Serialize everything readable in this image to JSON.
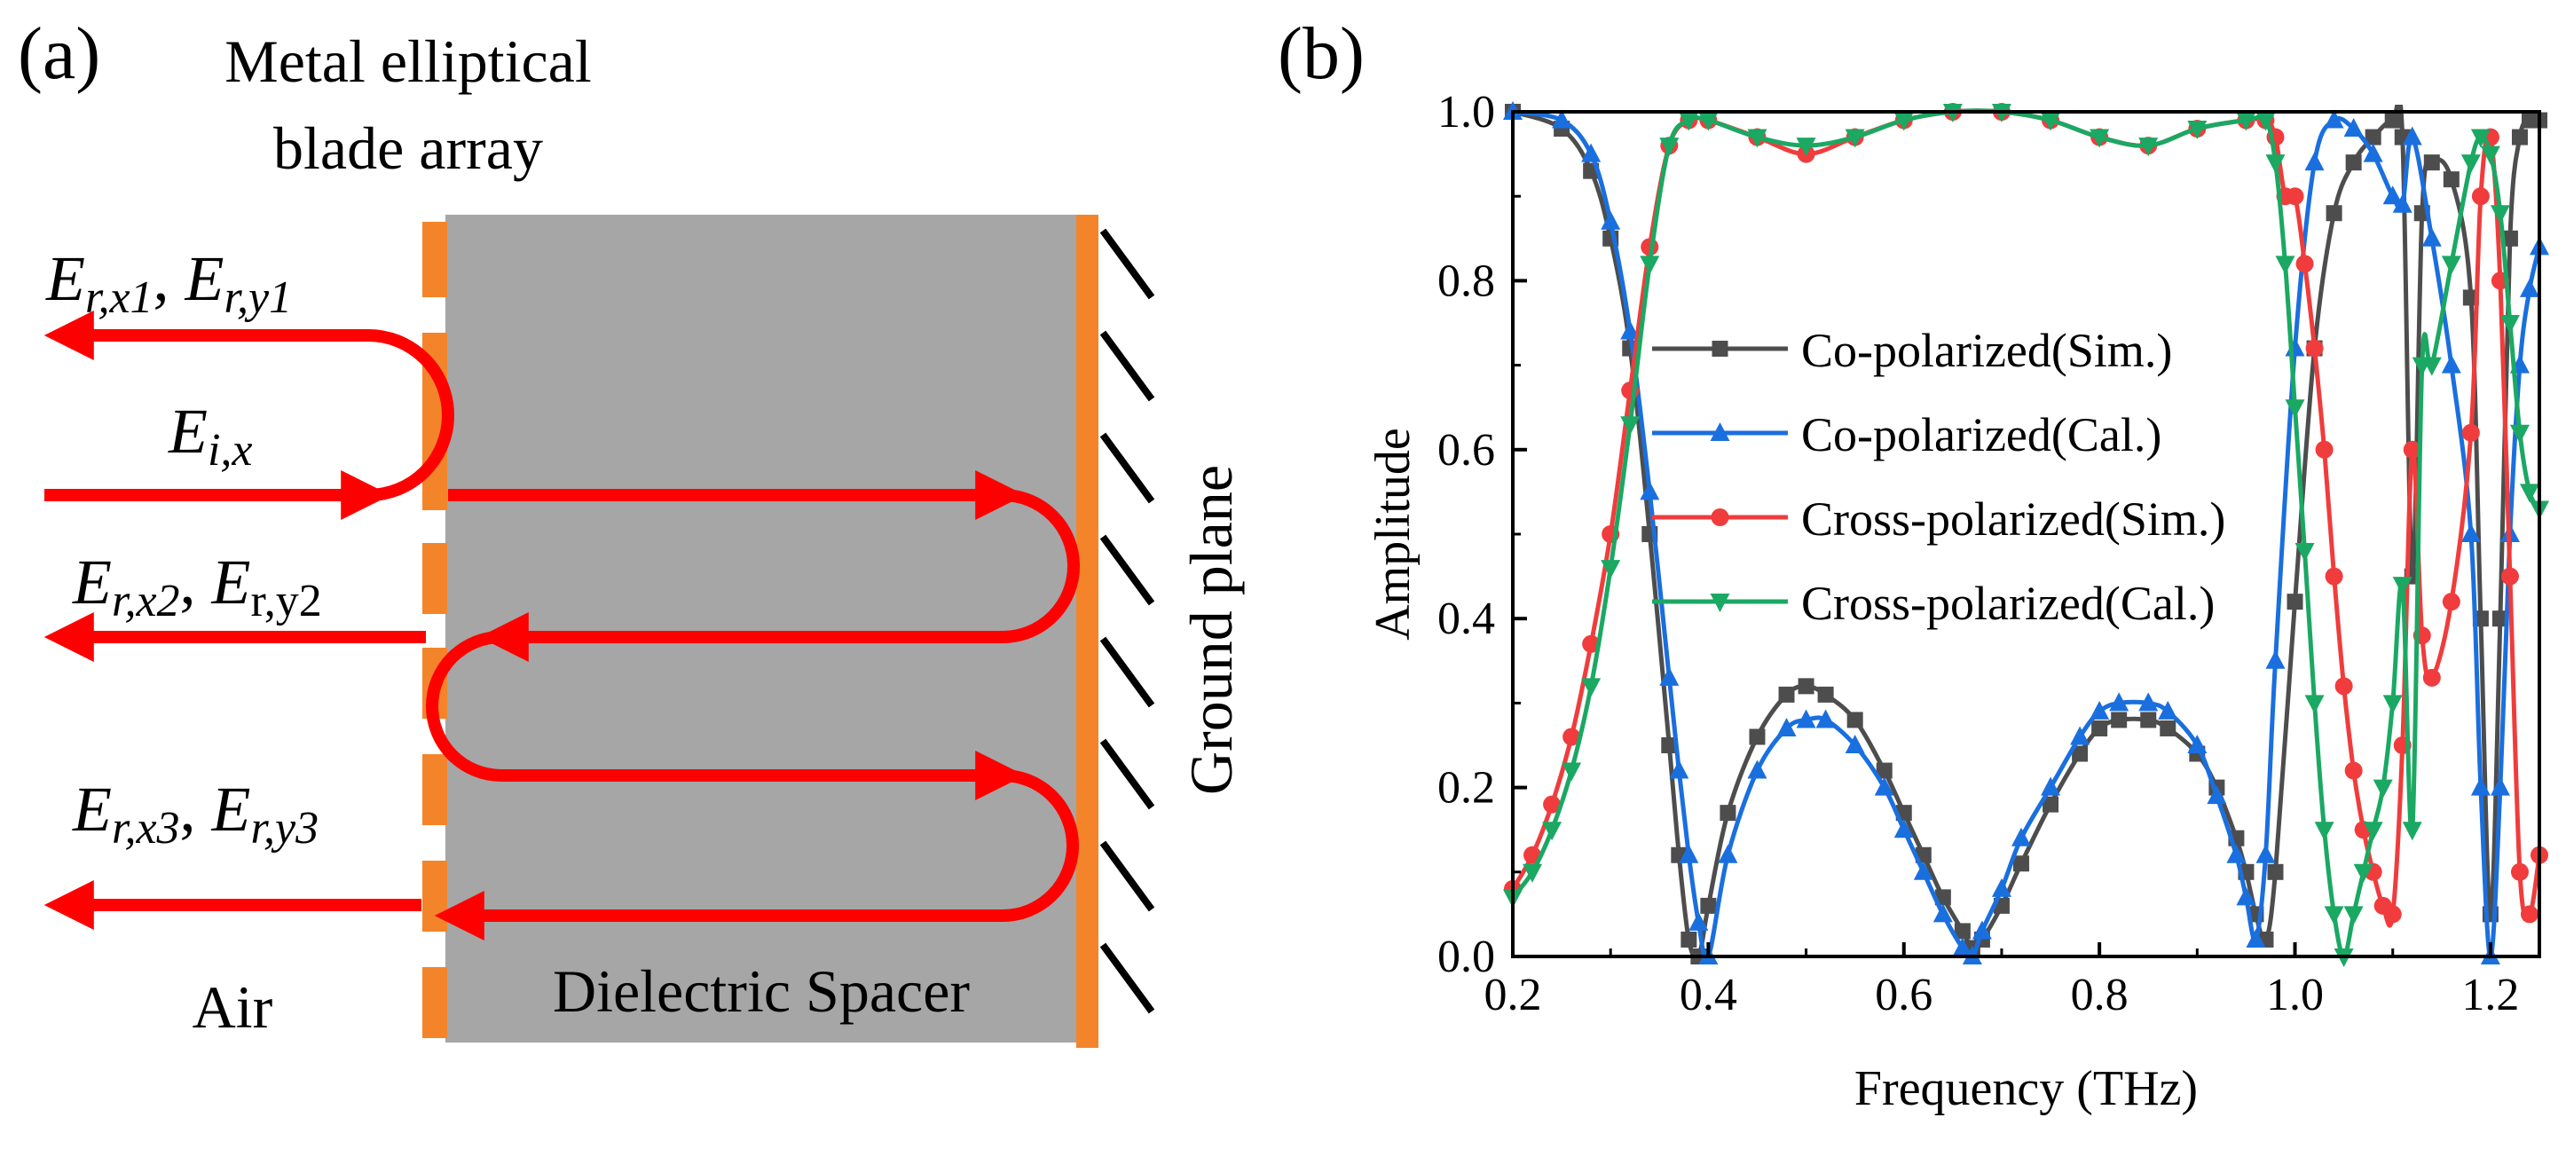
{
  "panel_a": {
    "label": "(a)",
    "title_line1": "Metal elliptical",
    "title_line2": "blade array",
    "spacer_label": "Dielectric Spacer",
    "air_label": "Air",
    "ground_label": "Ground plane",
    "field_incident": {
      "base": "E",
      "sub": "i,x"
    },
    "field_r1": {
      "b1": "E",
      "s1": "r,x1",
      "sep": ", ",
      "b2": "E",
      "s2": "r,y1"
    },
    "field_r2": {
      "b1": "E",
      "s1": "r,x2",
      "sep": ", ",
      "b2": "E",
      "s2": "r,y2"
    },
    "field_r3": {
      "b1": "E",
      "s1": "r,x3",
      "sep": ", ",
      "b2": "E",
      "s2": "r,y3"
    },
    "colors": {
      "arrow": "#ff0000",
      "blade": "#f4842a",
      "spacer": "#a6a6a6"
    }
  },
  "panel_b": {
    "label": "(b)"
  },
  "chart_data": {
    "type": "line",
    "xlabel": "Frequency (THz)",
    "ylabel": "Amplitude",
    "xlim": [
      0.2,
      1.25
    ],
    "ylim": [
      0.0,
      1.0
    ],
    "xticks": [
      "0.2",
      "0.4",
      "0.6",
      "0.8",
      "1.0",
      "1.2"
    ],
    "yticks": [
      "0.0",
      "0.2",
      "0.4",
      "0.6",
      "0.8",
      "1.0"
    ],
    "xtick_values": [
      0.2,
      0.4,
      0.6,
      0.8,
      1.0,
      1.2
    ],
    "ytick_values": [
      0.0,
      0.2,
      0.4,
      0.6,
      0.8,
      1.0
    ],
    "legend_position": "center",
    "series": [
      {
        "name": "Co-polarized(Sim.)",
        "color": "#4d4d4d",
        "marker": "square",
        "x": [
          0.2,
          0.25,
          0.28,
          0.3,
          0.32,
          0.34,
          0.36,
          0.37,
          0.38,
          0.39,
          0.4,
          0.42,
          0.45,
          0.48,
          0.5,
          0.52,
          0.55,
          0.58,
          0.6,
          0.62,
          0.64,
          0.66,
          0.67,
          0.68,
          0.7,
          0.72,
          0.75,
          0.78,
          0.8,
          0.82,
          0.85,
          0.87,
          0.9,
          0.92,
          0.94,
          0.95,
          0.96,
          0.97,
          0.98,
          1.0,
          1.02,
          1.04,
          1.06,
          1.08,
          1.1,
          1.11,
          1.12,
          1.13,
          1.14,
          1.16,
          1.18,
          1.19,
          1.2,
          1.21,
          1.22,
          1.23,
          1.24,
          1.25
        ],
        "y": [
          1.0,
          0.98,
          0.93,
          0.85,
          0.72,
          0.5,
          0.25,
          0.12,
          0.02,
          0.0,
          0.06,
          0.17,
          0.26,
          0.31,
          0.32,
          0.31,
          0.28,
          0.22,
          0.17,
          0.12,
          0.07,
          0.03,
          0.01,
          0.02,
          0.06,
          0.11,
          0.18,
          0.24,
          0.27,
          0.28,
          0.28,
          0.27,
          0.24,
          0.2,
          0.14,
          0.1,
          0.05,
          0.02,
          0.1,
          0.42,
          0.72,
          0.88,
          0.94,
          0.97,
          0.99,
          0.97,
          0.45,
          0.88,
          0.94,
          0.92,
          0.78,
          0.4,
          0.05,
          0.4,
          0.85,
          0.97,
          0.99,
          0.99
        ]
      },
      {
        "name": "Co-polarized(Cal.)",
        "color": "#1a6fdf",
        "marker": "triangle-up",
        "x": [
          0.2,
          0.25,
          0.28,
          0.3,
          0.32,
          0.34,
          0.36,
          0.37,
          0.38,
          0.39,
          0.4,
          0.42,
          0.45,
          0.48,
          0.5,
          0.52,
          0.55,
          0.58,
          0.6,
          0.62,
          0.64,
          0.66,
          0.67,
          0.68,
          0.7,
          0.72,
          0.75,
          0.78,
          0.8,
          0.82,
          0.85,
          0.87,
          0.9,
          0.92,
          0.94,
          0.95,
          0.96,
          0.97,
          0.98,
          1.0,
          1.02,
          1.04,
          1.06,
          1.08,
          1.1,
          1.11,
          1.12,
          1.14,
          1.16,
          1.18,
          1.19,
          1.2,
          1.21,
          1.22,
          1.23,
          1.24,
          1.25
        ],
        "y": [
          1.0,
          0.99,
          0.95,
          0.87,
          0.74,
          0.55,
          0.33,
          0.22,
          0.12,
          0.04,
          0.0,
          0.12,
          0.22,
          0.27,
          0.28,
          0.28,
          0.25,
          0.2,
          0.15,
          0.1,
          0.05,
          0.01,
          0.0,
          0.03,
          0.08,
          0.14,
          0.2,
          0.26,
          0.29,
          0.3,
          0.3,
          0.29,
          0.25,
          0.19,
          0.12,
          0.07,
          0.02,
          0.12,
          0.35,
          0.72,
          0.94,
          0.99,
          0.98,
          0.95,
          0.9,
          0.89,
          0.97,
          0.85,
          0.7,
          0.5,
          0.2,
          0.0,
          0.2,
          0.5,
          0.7,
          0.79,
          0.84
        ]
      },
      {
        "name": "Cross-polarized(Sim.)",
        "color": "#f03c3c",
        "marker": "circle",
        "x": [
          0.2,
          0.22,
          0.24,
          0.26,
          0.28,
          0.3,
          0.32,
          0.34,
          0.36,
          0.38,
          0.4,
          0.45,
          0.5,
          0.55,
          0.6,
          0.65,
          0.7,
          0.75,
          0.8,
          0.85,
          0.9,
          0.95,
          0.97,
          0.98,
          0.99,
          1.0,
          1.01,
          1.02,
          1.03,
          1.04,
          1.05,
          1.06,
          1.07,
          1.08,
          1.09,
          1.1,
          1.11,
          1.12,
          1.13,
          1.14,
          1.16,
          1.18,
          1.19,
          1.2,
          1.21,
          1.22,
          1.23,
          1.24,
          1.25
        ],
        "y": [
          0.08,
          0.12,
          0.18,
          0.26,
          0.37,
          0.5,
          0.67,
          0.84,
          0.96,
          0.99,
          0.99,
          0.97,
          0.95,
          0.97,
          0.99,
          1.0,
          1.0,
          0.99,
          0.97,
          0.96,
          0.98,
          0.99,
          0.99,
          0.97,
          0.9,
          0.9,
          0.82,
          0.72,
          0.6,
          0.45,
          0.32,
          0.22,
          0.15,
          0.1,
          0.06,
          0.05,
          0.25,
          0.6,
          0.38,
          0.33,
          0.42,
          0.62,
          0.9,
          0.97,
          0.8,
          0.45,
          0.1,
          0.05,
          0.12
        ]
      },
      {
        "name": "Cross-polarized(Cal.)",
        "color": "#1aa863",
        "marker": "triangle-down",
        "x": [
          0.2,
          0.22,
          0.24,
          0.26,
          0.28,
          0.3,
          0.32,
          0.34,
          0.36,
          0.38,
          0.4,
          0.45,
          0.5,
          0.55,
          0.6,
          0.65,
          0.7,
          0.75,
          0.8,
          0.85,
          0.9,
          0.95,
          0.97,
          0.98,
          0.99,
          1.0,
          1.01,
          1.02,
          1.03,
          1.04,
          1.05,
          1.06,
          1.07,
          1.08,
          1.09,
          1.1,
          1.11,
          1.12,
          1.13,
          1.14,
          1.16,
          1.18,
          1.19,
          1.2,
          1.21,
          1.22,
          1.23,
          1.24,
          1.25
        ],
        "y": [
          0.07,
          0.1,
          0.15,
          0.22,
          0.32,
          0.46,
          0.63,
          0.82,
          0.96,
          0.99,
          0.99,
          0.97,
          0.96,
          0.97,
          0.99,
          1.0,
          1.0,
          0.99,
          0.97,
          0.96,
          0.98,
          0.99,
          0.99,
          0.94,
          0.82,
          0.65,
          0.48,
          0.3,
          0.15,
          0.05,
          0.0,
          0.05,
          0.1,
          0.15,
          0.2,
          0.3,
          0.44,
          0.15,
          0.7,
          0.7,
          0.82,
          0.94,
          0.97,
          0.95,
          0.88,
          0.75,
          0.62,
          0.55,
          0.53
        ]
      }
    ]
  }
}
